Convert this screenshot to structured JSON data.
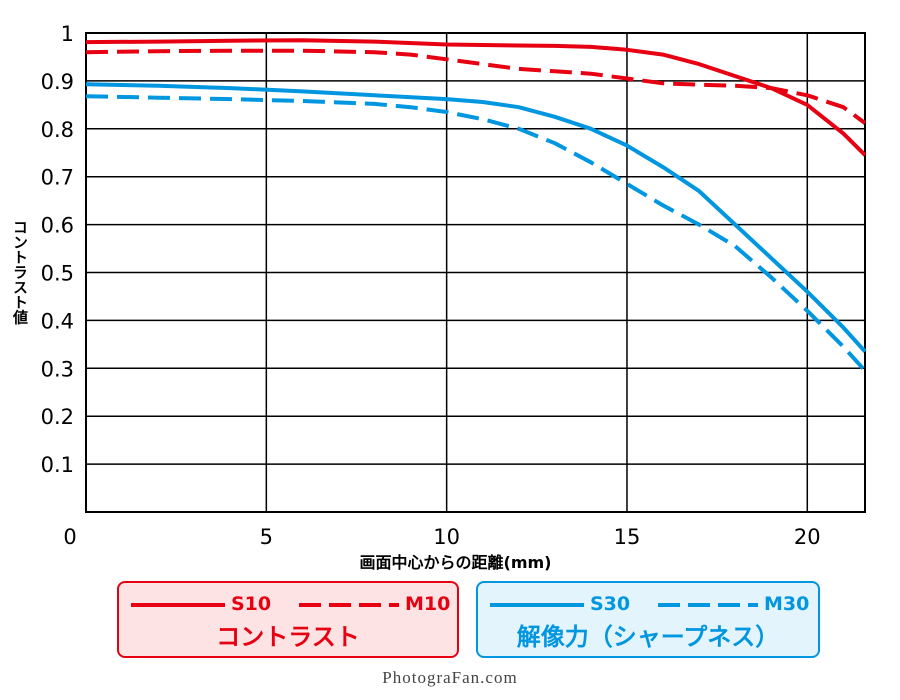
{
  "chart_data": {
    "type": "line",
    "title": "",
    "xlabel": "画面中心からの距離(mm)",
    "ylabel": "コントラスト値",
    "xlim": [
      0,
      21.6
    ],
    "ylim": [
      0,
      1
    ],
    "x_ticks": [
      0,
      5,
      10,
      15,
      20
    ],
    "y_ticks": [
      0.1,
      0.2,
      0.3,
      0.4,
      0.5,
      0.6,
      0.7,
      0.8,
      0.9,
      1
    ],
    "y_tick_labels": [
      "0.1",
      "0.2",
      "0.3",
      "0.4",
      "0.5",
      "0.6",
      "0.7",
      "0.8",
      "0.9",
      "1"
    ],
    "grid": true,
    "series": [
      {
        "name": "S10",
        "color": "#e60012",
        "style": "solid",
        "x": [
          0,
          2,
          4,
          6,
          8,
          10,
          12,
          13,
          14,
          15,
          16,
          17,
          18,
          19,
          20,
          21,
          21.6
        ],
        "y": [
          0.981,
          0.982,
          0.984,
          0.985,
          0.982,
          0.976,
          0.974,
          0.973,
          0.971,
          0.965,
          0.955,
          0.935,
          0.91,
          0.885,
          0.85,
          0.79,
          0.745
        ]
      },
      {
        "name": "M10",
        "color": "#e60012",
        "style": "dashed",
        "x": [
          0,
          2,
          4,
          6,
          8,
          9,
          10,
          11,
          12,
          13,
          14,
          15,
          16,
          17,
          18,
          19,
          20,
          21,
          21.6
        ],
        "y": [
          0.96,
          0.962,
          0.963,
          0.963,
          0.96,
          0.955,
          0.945,
          0.935,
          0.925,
          0.92,
          0.915,
          0.905,
          0.895,
          0.892,
          0.89,
          0.885,
          0.87,
          0.845,
          0.812
        ]
      },
      {
        "name": "S30",
        "color": "#0096e0",
        "style": "solid",
        "x": [
          0,
          2,
          4,
          6,
          8,
          10,
          11,
          12,
          13,
          14,
          15,
          16,
          17,
          18,
          19,
          20,
          21,
          21.6
        ],
        "y": [
          0.893,
          0.89,
          0.885,
          0.878,
          0.87,
          0.862,
          0.856,
          0.845,
          0.825,
          0.8,
          0.765,
          0.72,
          0.67,
          0.6,
          0.53,
          0.46,
          0.385,
          0.335
        ]
      },
      {
        "name": "M30",
        "color": "#0096e0",
        "style": "dashed",
        "x": [
          0,
          2,
          4,
          6,
          8,
          9,
          10,
          11,
          12,
          13,
          14,
          15,
          16,
          17,
          18,
          19,
          20,
          21,
          21.6
        ],
        "y": [
          0.868,
          0.865,
          0.862,
          0.858,
          0.852,
          0.845,
          0.835,
          0.82,
          0.8,
          0.77,
          0.73,
          0.685,
          0.64,
          0.6,
          0.555,
          0.49,
          0.42,
          0.345,
          0.295
        ]
      }
    ]
  },
  "legend": {
    "contrast": {
      "title": "コントラスト",
      "solid_label": "S10",
      "dashed_label": "M10",
      "color": "#e60012"
    },
    "sharpness": {
      "title": "解像力（シャープネス）",
      "solid_label": "S30",
      "dashed_label": "M30",
      "color": "#0096e0"
    }
  },
  "credit": "PhotograFan.com"
}
